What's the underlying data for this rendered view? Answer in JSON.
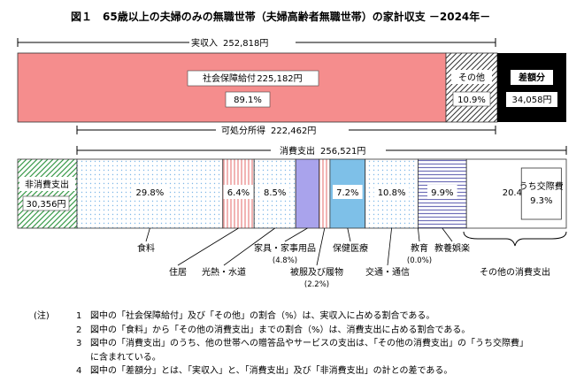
{
  "title": "図１　65歳以上の夫婦のみの無職世帯（夫婦高齢者無職世帯）の家計収支 －2024年－",
  "chart_data": {
    "type": "bar",
    "unit": "円",
    "income": {
      "label": "実収入",
      "value": 252818,
      "value_text": "252,818円",
      "segments": [
        {
          "name": "social_security",
          "label": "社会保障給付",
          "value": 225182,
          "value_text": "225,182円",
          "share_text": "89.1%",
          "color": "#f58d8d",
          "pattern": "solid"
        },
        {
          "name": "other",
          "label": "その他",
          "value": 27636,
          "share_text": "10.9%",
          "color": "#ffffff",
          "pattern": "diagonal"
        },
        {
          "name": "deficit",
          "label": "差額分",
          "value": 34058,
          "value_text": "34,058円",
          "color": "#000000",
          "pattern": "solid"
        }
      ]
    },
    "disposable": {
      "label": "可処分所得",
      "value": 222462,
      "value_text": "222,462円"
    },
    "consumption": {
      "label": "消費支出",
      "value": 256521,
      "value_text": "256,521円"
    },
    "non_consumption": {
      "label": "非消費支出",
      "value": 30356,
      "value_text": "30,356円",
      "color": "#3a9a4a",
      "pattern": "diagonal-green"
    },
    "expenditure": [
      {
        "name": "food",
        "label": "食料",
        "share": 29.8,
        "share_text": "29.8%",
        "pattern": "dots",
        "color": "#7fb8e8"
      },
      {
        "name": "housing",
        "label": "住居",
        "share": 6.4,
        "share_text": "6.4%",
        "pattern": "vlines",
        "color": "#e66a6a"
      },
      {
        "name": "utilities",
        "label": "光熱・水道",
        "share": 8.5,
        "share_text": "8.5%",
        "pattern": "dots",
        "color": "#7fb8e8"
      },
      {
        "name": "furniture",
        "label": "家具・家事用品",
        "sub": "(4.8%)",
        "share": 4.8,
        "pattern": "solid",
        "color": "#a9a3ec"
      },
      {
        "name": "clothing",
        "label": "被服及び履物",
        "sub": "(2.2%)",
        "share": 2.2,
        "pattern": "vlines",
        "color": "#e66a6a"
      },
      {
        "name": "medical",
        "label": "保健医療",
        "share": 7.2,
        "share_text": "7.2%",
        "pattern": "solid",
        "color": "#7ec0e8"
      },
      {
        "name": "transport",
        "label": "交通・通信",
        "share": 10.8,
        "share_text": "10.8%",
        "pattern": "dots",
        "color": "#7fb8e8"
      },
      {
        "name": "education",
        "label": "教育",
        "sub": "(0.0%)",
        "share": 0.0,
        "pattern": "none",
        "color": "#000000"
      },
      {
        "name": "culture",
        "label": "教養娯楽",
        "share": 9.9,
        "share_text": "9.9%",
        "pattern": "hlines",
        "color": "#7070b8"
      },
      {
        "name": "other_consumption",
        "label": "その他の消費支出",
        "share": 20.4,
        "share_text": "20.4%",
        "pattern": "none",
        "color": "#ffffff",
        "inner": {
          "label": "うち交際費",
          "share_text": "9.3%"
        }
      }
    ]
  },
  "notes": [
    {
      "mark": "(注)",
      "num": "1",
      "text": "図中の「社会保障給付」及び「その他」の割合（%）は、実収入に占める割合である。"
    },
    {
      "mark": "",
      "num": "2",
      "text": "図中の「食料」から「その他の消費支出」までの割合（%）は、消費支出に占める割合である。"
    },
    {
      "mark": "",
      "num": "3",
      "text": "図中の「消費支出」のうち、他の世帯への贈答品やサービスの支出は、「その他の消費支出」の「うち交際費」"
    },
    {
      "mark": "",
      "num": "",
      "text": "に含まれている。"
    },
    {
      "mark": "",
      "num": "4",
      "text": "図中の「差額分」とは、「実収入」と、「消費支出」及び「非消費支出」の計との差である。"
    }
  ]
}
